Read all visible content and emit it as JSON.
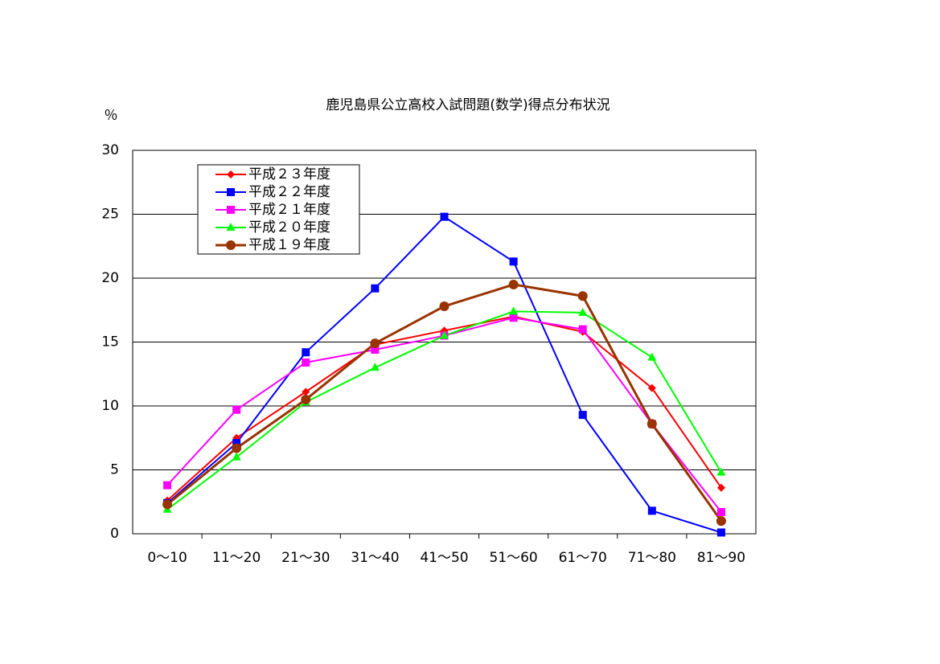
{
  "chart_data": {
    "type": "line",
    "title": "鹿児島県公立高校入試問題(数学)得点分布状況",
    "y_label": "％",
    "categories": [
      "0〜10",
      "11〜20",
      "21〜30",
      "31〜40",
      "41〜50",
      "51〜60",
      "61〜70",
      "71〜80",
      "81〜90"
    ],
    "series": [
      {
        "name": "平成２３年度",
        "color": "#ff0000",
        "marker": "diamond",
        "values": [
          2.6,
          7.5,
          11.1,
          14.8,
          15.9,
          17.0,
          15.8,
          11.4,
          3.6
        ]
      },
      {
        "name": "平成２２年度",
        "color": "#0000ff",
        "marker": "square",
        "values": [
          2.4,
          7.1,
          14.2,
          19.2,
          24.8,
          21.3,
          9.3,
          1.8,
          0.1
        ]
      },
      {
        "name": "平成２１年度",
        "color": "#ff00ff",
        "marker": "square",
        "values": [
          3.8,
          9.7,
          13.4,
          14.4,
          15.5,
          16.9,
          16.0,
          8.6,
          1.7
        ]
      },
      {
        "name": "平成２０年度",
        "color": "#00ff00",
        "marker": "triangle",
        "values": [
          1.9,
          6.0,
          10.3,
          13.0,
          15.5,
          17.4,
          17.3,
          13.8,
          4.8
        ]
      },
      {
        "name": "平成１９年度",
        "color": "#993300",
        "marker": "circle",
        "values": [
          2.3,
          6.7,
          10.5,
          14.9,
          17.8,
          19.5,
          18.6,
          8.6,
          1.0
        ]
      }
    ],
    "ylim": [
      0,
      30
    ],
    "yticks": [
      0,
      5,
      10,
      15,
      20,
      25,
      30
    ],
    "grid": true,
    "legend": "upper left"
  }
}
